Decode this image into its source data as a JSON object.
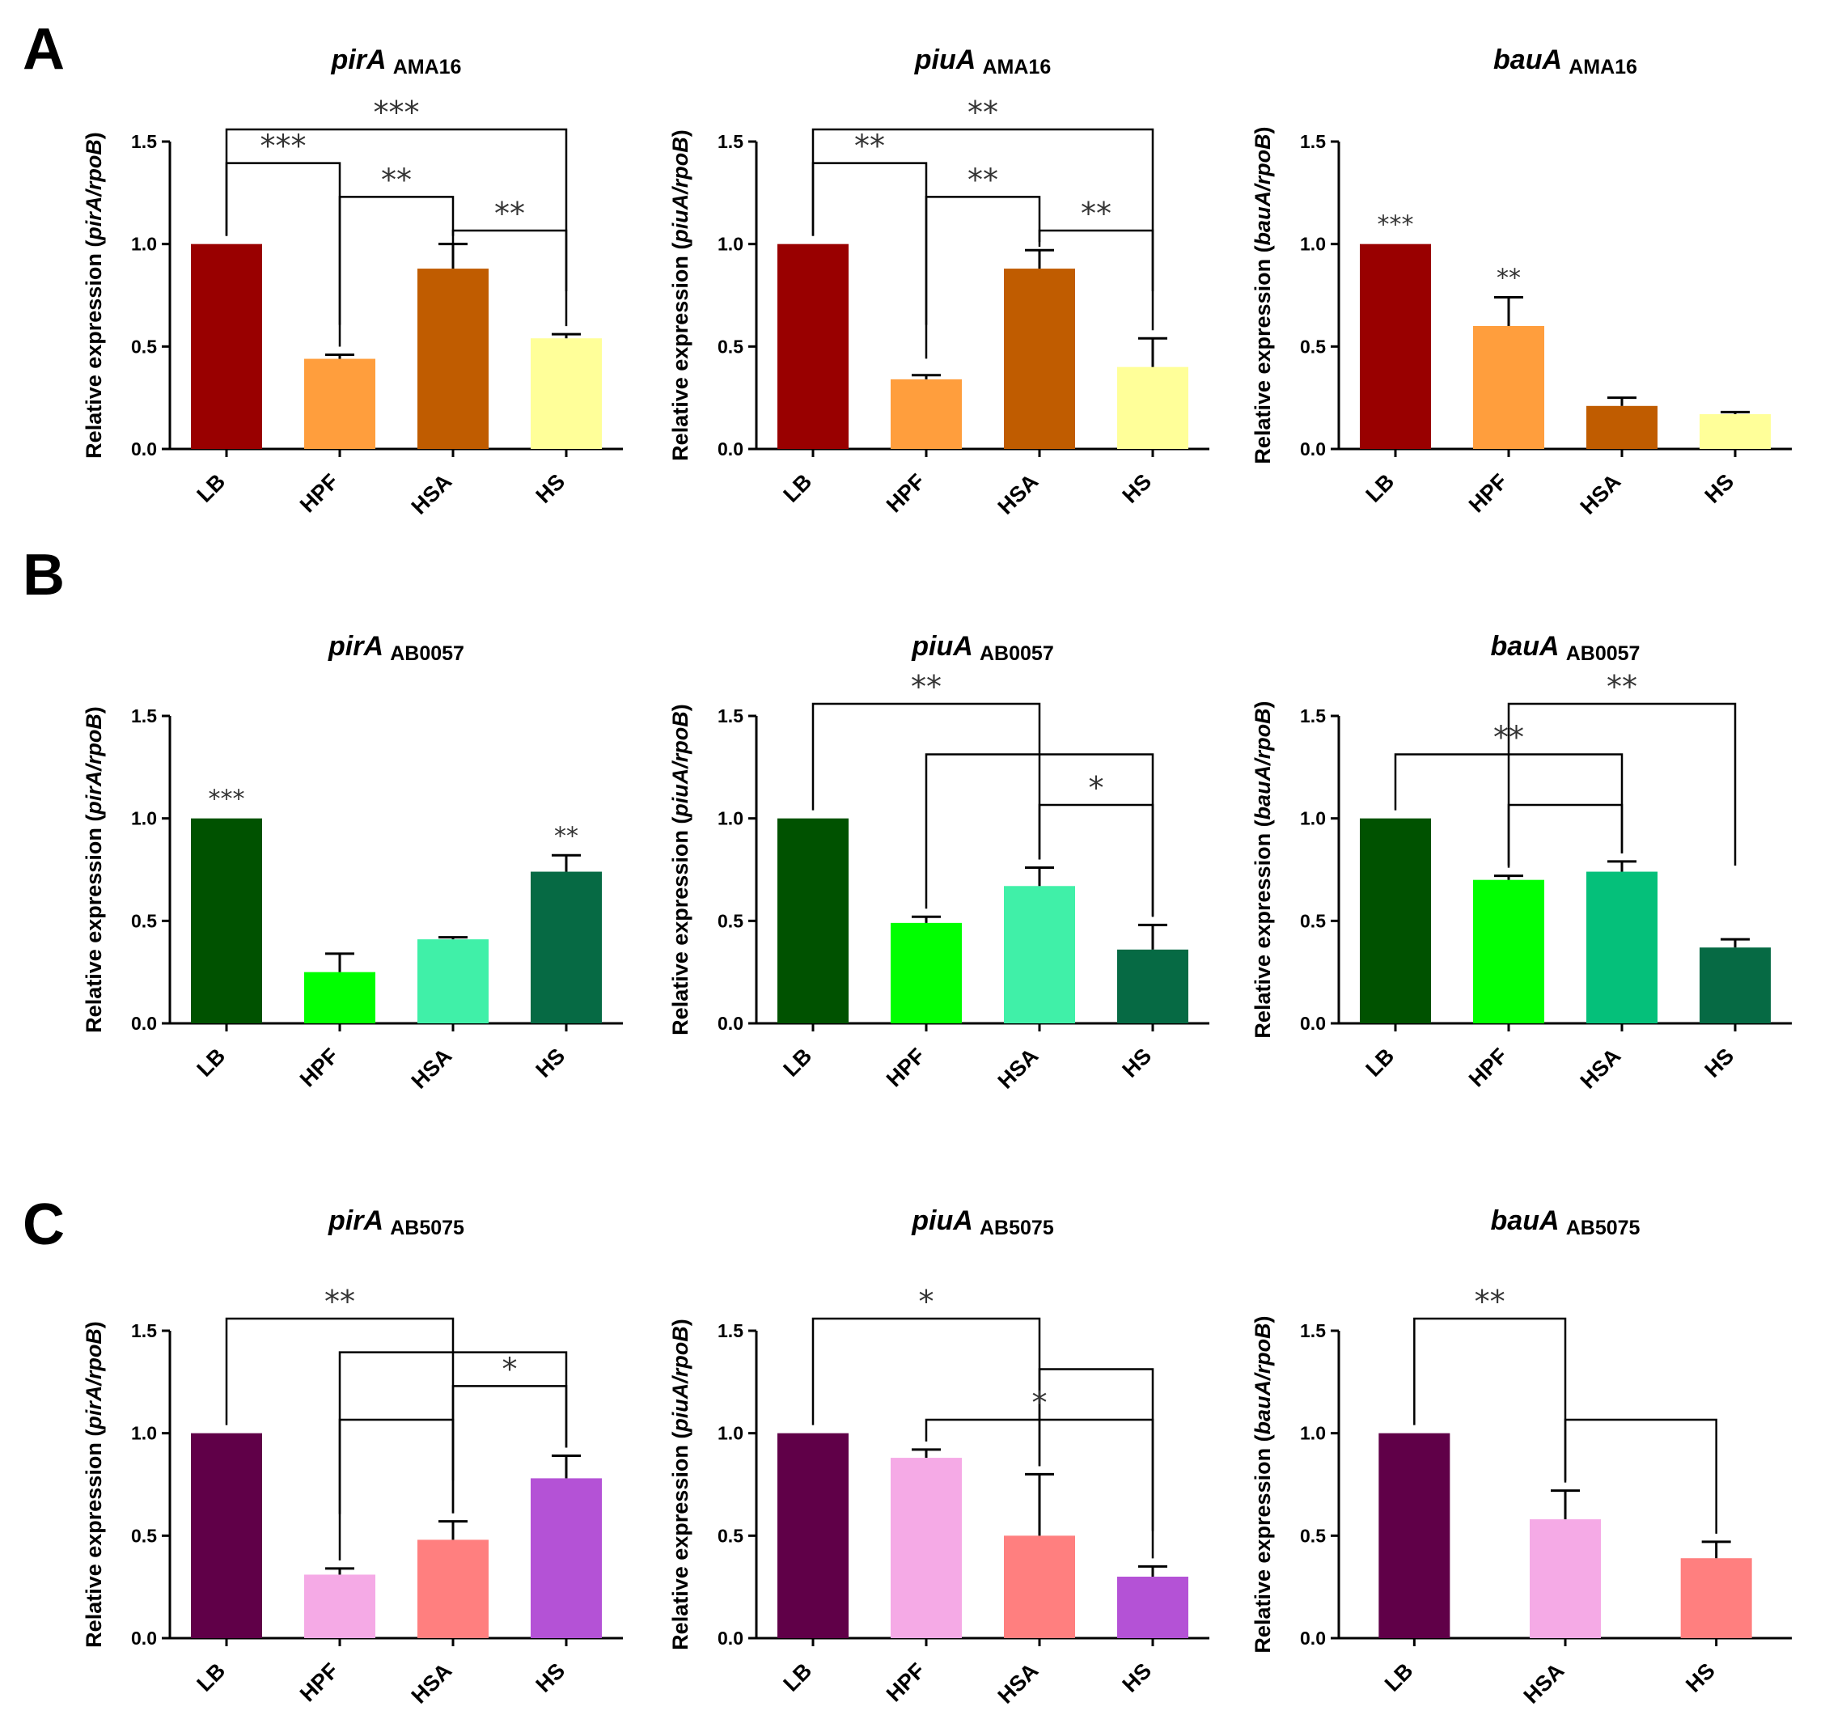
{
  "panels": [
    "A",
    "B",
    "C"
  ],
  "chart_data": [
    {
      "type": "bar",
      "title": "pirA",
      "subtitle": "AMA16",
      "ylabel_prefix": "Relative expression (",
      "ylabel_gene": "pirA/rpoB",
      "ylabel_suffix": ")",
      "categories": [
        "LB",
        "HPF",
        "HSA",
        "HS"
      ],
      "values": [
        1.0,
        0.44,
        0.88,
        0.54
      ],
      "errors": [
        0,
        0.02,
        0.12,
        0.02
      ],
      "colors": [
        "#990000",
        "#ff9e3d",
        "#c05c00",
        "#ffff99"
      ],
      "ylim": [
        0,
        1.5
      ],
      "yticks": [
        "0.0",
        "0.5",
        "1.0",
        "1.5"
      ],
      "significance": [
        {
          "from": 0,
          "to": 3,
          "label": "***"
        },
        {
          "from": 0,
          "to": 1,
          "label": "***"
        },
        {
          "from": 1,
          "to": 2,
          "label": "**"
        },
        {
          "from": 2,
          "to": 3,
          "label": "**"
        }
      ]
    },
    {
      "type": "bar",
      "title": "piuA",
      "subtitle": "AMA16",
      "ylabel_prefix": "Relative expression (",
      "ylabel_gene": "piuA/rpoB",
      "ylabel_suffix": ")",
      "categories": [
        "LB",
        "HPF",
        "HSA",
        "HS"
      ],
      "values": [
        1.0,
        0.34,
        0.88,
        0.4
      ],
      "errors": [
        0,
        0.02,
        0.09,
        0.14
      ],
      "colors": [
        "#990000",
        "#ff9e3d",
        "#c05c00",
        "#ffff99"
      ],
      "ylim": [
        0,
        1.5
      ],
      "yticks": [
        "0.0",
        "0.5",
        "1.0",
        "1.5"
      ],
      "significance": [
        {
          "from": 0,
          "to": 3,
          "label": "**"
        },
        {
          "from": 0,
          "to": 1,
          "label": "**"
        },
        {
          "from": 1,
          "to": 2,
          "label": "**"
        },
        {
          "from": 2,
          "to": 3,
          "label": "**"
        }
      ]
    },
    {
      "type": "bar",
      "title": "bauA",
      "subtitle": "AMA16",
      "ylabel_prefix": "Relative expression (",
      "ylabel_gene": "bauA/rpoB",
      "ylabel_suffix": ")",
      "categories": [
        "LB",
        "HPF",
        "HSA",
        "HS"
      ],
      "values": [
        1.0,
        0.6,
        0.21,
        0.17
      ],
      "errors": [
        0,
        0.14,
        0.04,
        0.01
      ],
      "colors": [
        "#990000",
        "#ff9e3d",
        "#c05c00",
        "#ffff99"
      ],
      "ylim": [
        0,
        1.5
      ],
      "yticks": [
        "0.0",
        "0.5",
        "1.0",
        "1.5"
      ],
      "bar_marks": [
        "***",
        "**",
        "",
        ""
      ],
      "significance": []
    },
    {
      "type": "bar",
      "title": "pirA",
      "subtitle": "AB0057",
      "ylabel_prefix": "Relative expression (",
      "ylabel_gene": "pirA/rpoB",
      "ylabel_suffix": ")",
      "categories": [
        "LB",
        "HPF",
        "HSA",
        "HS"
      ],
      "values": [
        1.0,
        0.25,
        0.41,
        0.74
      ],
      "errors": [
        0,
        0.09,
        0.01,
        0.08
      ],
      "colors": [
        "#005200",
        "#00ff00",
        "#40f0a8",
        "#066a44"
      ],
      "ylim": [
        0,
        1.5
      ],
      "yticks": [
        "0.0",
        "0.5",
        "1.0",
        "1.5"
      ],
      "bar_marks": [
        "***",
        "",
        "",
        "**"
      ],
      "significance": []
    },
    {
      "type": "bar",
      "title": "piuA",
      "subtitle": "AB0057",
      "ylabel_prefix": "Relative expression (",
      "ylabel_gene": "piuA/rpoB",
      "ylabel_suffix": ")",
      "categories": [
        "LB",
        "HPF",
        "HSA",
        "HS"
      ],
      "values": [
        1.0,
        0.49,
        0.67,
        0.36
      ],
      "errors": [
        0,
        0.03,
        0.09,
        0.12
      ],
      "colors": [
        "#005200",
        "#00ff00",
        "#40f0a8",
        "#066a44"
      ],
      "ylim": [
        0,
        1.5
      ],
      "yticks": [
        "0.0",
        "0.5",
        "1.0",
        "1.5"
      ],
      "significance": [
        {
          "from": 0,
          "to": 2,
          "label": "**"
        },
        {
          "from": 1,
          "to": 3,
          "label": ""
        },
        {
          "from": 2,
          "to": 3,
          "label": "*"
        }
      ]
    },
    {
      "type": "bar",
      "title": "bauA",
      "subtitle": "AB0057",
      "ylabel_prefix": "Relative expression (",
      "ylabel_gene": "bauA/rpoB",
      "ylabel_suffix": ")",
      "categories": [
        "LB",
        "HPF",
        "HSA",
        "HS"
      ],
      "values": [
        1.0,
        0.7,
        0.74,
        0.37
      ],
      "errors": [
        0,
        0.02,
        0.05,
        0.04
      ],
      "colors": [
        "#005200",
        "#00ff00",
        "#05c07a",
        "#066a44"
      ],
      "ylim": [
        0,
        1.5
      ],
      "yticks": [
        "0.0",
        "0.5",
        "1.0",
        "1.5"
      ],
      "significance": [
        {
          "from": 1,
          "to": 3,
          "label": "**"
        },
        {
          "from": 0,
          "to": 2,
          "label": "**"
        },
        {
          "from": 1,
          "to": 2,
          "label": ""
        }
      ]
    },
    {
      "type": "bar",
      "title": "pirA",
      "subtitle": "AB5075",
      "ylabel_prefix": "Relative expression (",
      "ylabel_gene": "pirA/rpoB",
      "ylabel_suffix": ")",
      "categories": [
        "LB",
        "HPF",
        "HSA",
        "HS"
      ],
      "values": [
        1.0,
        0.31,
        0.48,
        0.78
      ],
      "errors": [
        0,
        0.03,
        0.09,
        0.11
      ],
      "colors": [
        "#600048",
        "#f5aae6",
        "#ff7f7f",
        "#b452d6"
      ],
      "ylim": [
        0,
        1.5
      ],
      "yticks": [
        "0.0",
        "0.5",
        "1.0",
        "1.5"
      ],
      "significance": [
        {
          "from": 0,
          "to": 2,
          "label": "**"
        },
        {
          "from": 1,
          "to": 3,
          "label": ""
        },
        {
          "from": 2,
          "to": 3,
          "label": "*"
        },
        {
          "from": 1,
          "to": 2,
          "label": ""
        }
      ]
    },
    {
      "type": "bar",
      "title": "piuA",
      "subtitle": "AB5075",
      "ylabel_prefix": "Relative expression (",
      "ylabel_gene": "piuA/rpoB",
      "ylabel_suffix": ")",
      "categories": [
        "LB",
        "HPF",
        "HSA",
        "HS"
      ],
      "values": [
        1.0,
        0.88,
        0.5,
        0.3
      ],
      "errors": [
        0,
        0.04,
        0.3,
        0.05
      ],
      "colors": [
        "#600048",
        "#f5aae6",
        "#ff7f7f",
        "#b452d6"
      ],
      "ylim": [
        0,
        1.5
      ],
      "yticks": [
        "0.0",
        "0.5",
        "1.0",
        "1.5"
      ],
      "significance": [
        {
          "from": 0,
          "to": 2,
          "label": "*"
        },
        {
          "from": 2,
          "to": 3,
          "label": ""
        },
        {
          "from": 1,
          "to": 3,
          "label": "*"
        }
      ]
    },
    {
      "type": "bar",
      "title": "bauA",
      "subtitle": "AB5075",
      "ylabel_prefix": "Relative expression (",
      "ylabel_gene": "bauA/rpoB",
      "ylabel_suffix": ")",
      "categories": [
        "LB",
        "HSA",
        "HS"
      ],
      "values": [
        1.0,
        0.58,
        0.39
      ],
      "errors": [
        0,
        0.14,
        0.08
      ],
      "colors": [
        "#600048",
        "#f5aae6",
        "#ff7f7f"
      ],
      "ylim": [
        0,
        1.5
      ],
      "yticks": [
        "0.0",
        "0.5",
        "1.0",
        "1.5"
      ],
      "significance": [
        {
          "from": 0,
          "to": 1,
          "label": "**"
        },
        {
          "from": 1,
          "to": 2,
          "label": ""
        }
      ]
    }
  ]
}
